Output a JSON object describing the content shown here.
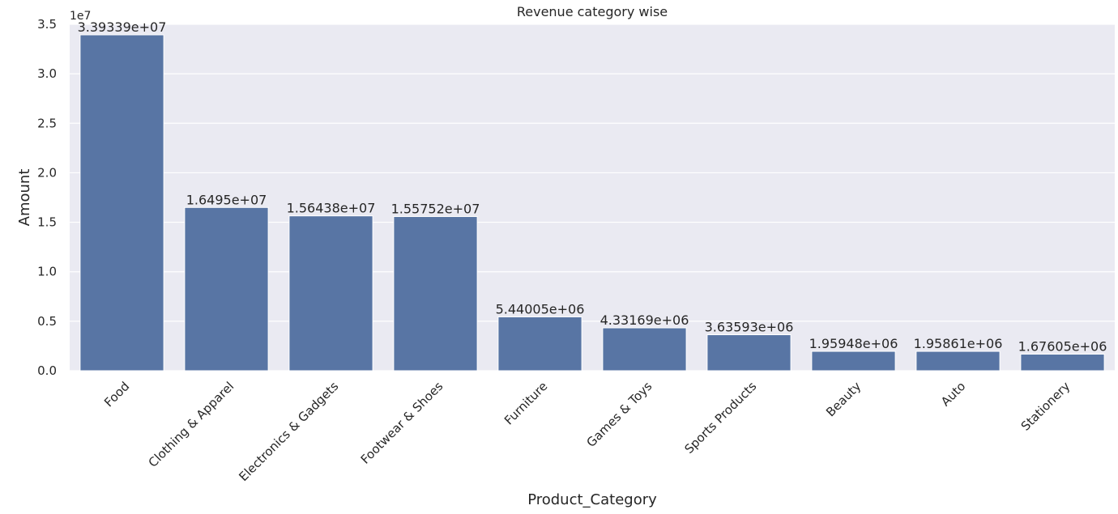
{
  "chart_data": {
    "type": "bar",
    "title": "Revenue category wise",
    "xlabel": "Product_Category",
    "ylabel": "Amount",
    "y_offset_label": "1e7",
    "categories": [
      "Food",
      "Clothing & Apparel",
      "Electronics & Gadgets",
      "Footwear & Shoes",
      "Furniture",
      "Games & Toys",
      "Sports Products",
      "Beauty",
      "Auto",
      "Stationery"
    ],
    "values": [
      33933900,
      16495000,
      15643800,
      15575200,
      5440050,
      4331690,
      3635930,
      1959480,
      1958610,
      1676050
    ],
    "data_labels": [
      "3.39339e+07",
      "1.6495e+07",
      "1.56438e+07",
      "1.55752e+07",
      "5.44005e+06",
      "4.33169e+06",
      "3.63593e+06",
      "1.95948e+06",
      "1.95861e+06",
      "1.67605e+06"
    ],
    "ylim": [
      0,
      35000000
    ],
    "yticks": [
      0,
      5000000,
      10000000,
      15000000,
      20000000,
      25000000,
      30000000,
      35000000
    ],
    "ytick_labels": [
      "0.0",
      "0.5",
      "1.0",
      "1.5",
      "2.0",
      "2.5",
      "3.0",
      "3.5"
    ],
    "grid": true,
    "colors": {
      "bar": "#5875a4",
      "background": "#eaeaf2",
      "grid": "#ffffff"
    }
  }
}
